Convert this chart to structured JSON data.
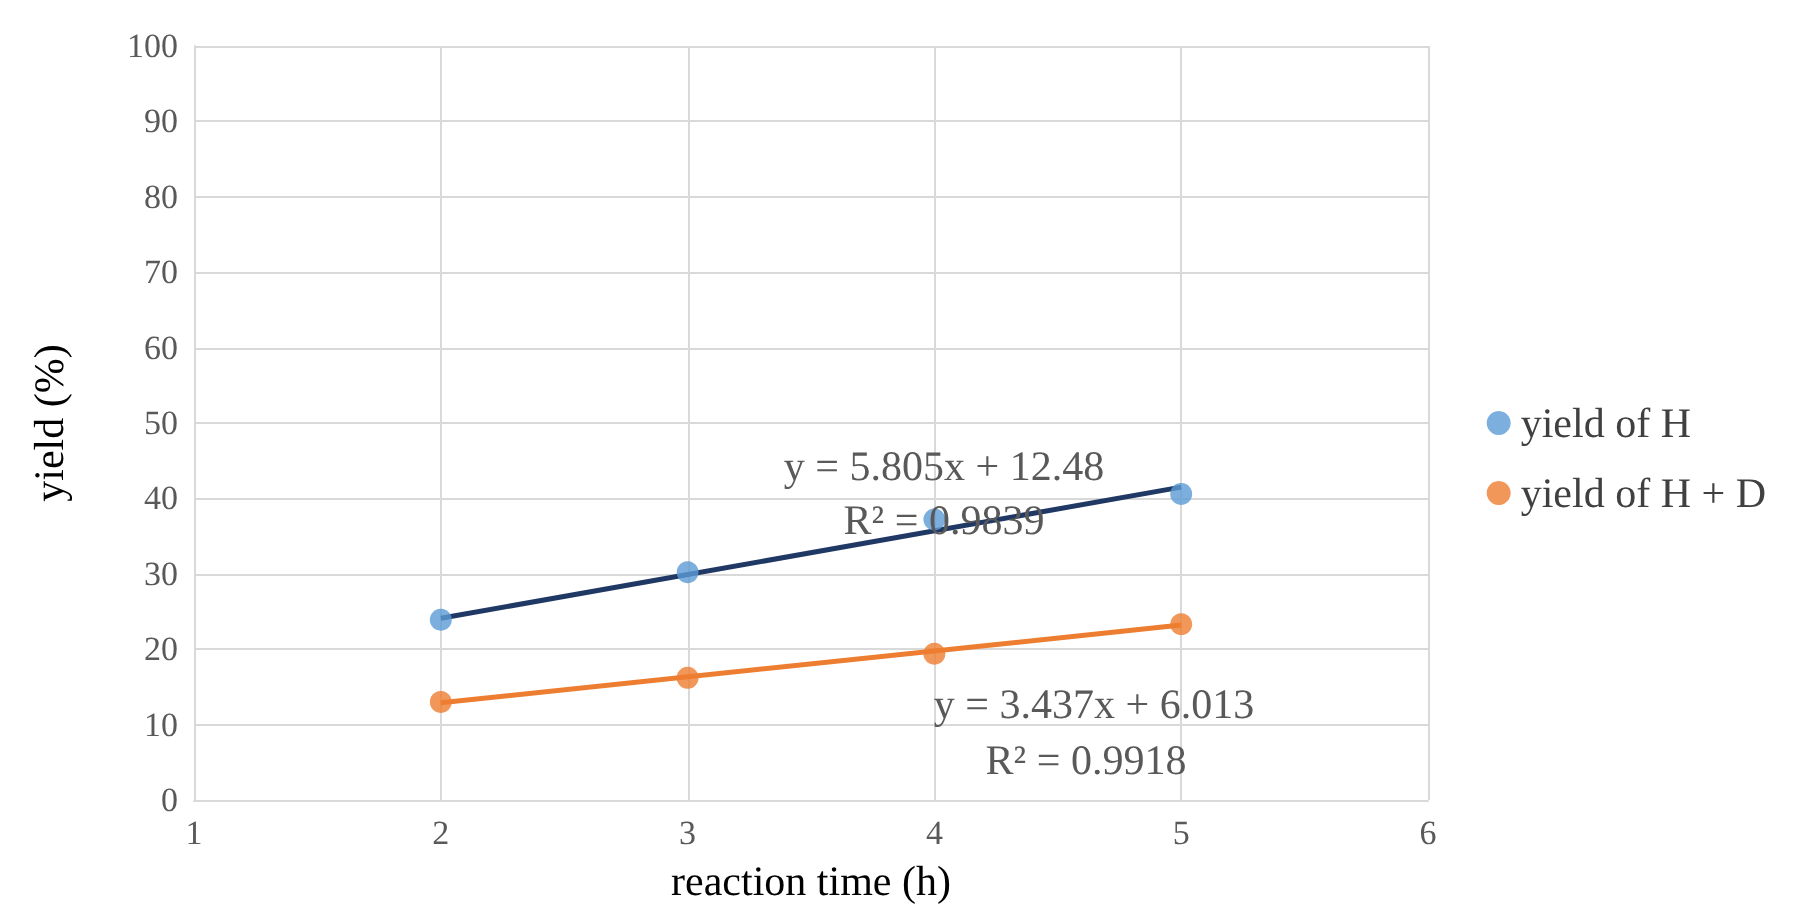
{
  "chart_data": {
    "type": "scatter",
    "xlabel": "reaction time (h)",
    "ylabel": "yield (%)",
    "xlim": [
      1,
      6
    ],
    "xticks": [
      1,
      2,
      3,
      4,
      5,
      6
    ],
    "ylim": [
      0,
      100
    ],
    "yticks": [
      0,
      10,
      20,
      30,
      40,
      50,
      60,
      70,
      80,
      90,
      100
    ],
    "grid": true,
    "legend": "right",
    "marker": "circle",
    "series": [
      {
        "name": "yield of H",
        "color": "#5b9bd5",
        "x": [
          2,
          3,
          4,
          5
        ],
        "values": [
          23.9,
          30.2,
          37.2,
          40.6
        ]
      },
      {
        "name": "yield of H + D",
        "color": "#ed7d31",
        "x": [
          2,
          3,
          4,
          5
        ],
        "values": [
          13.0,
          16.2,
          19.4,
          23.3
        ]
      },
      {
        "type": "line",
        "marker": "none",
        "color": "#1f3864",
        "x": [
          2,
          5
        ],
        "values": [
          24.1,
          41.5
        ]
      },
      {
        "type": "line",
        "marker": "none",
        "color": "#ed7d31",
        "x": [
          2,
          5
        ],
        "values": [
          12.9,
          23.2
        ]
      }
    ],
    "annotations": [
      "y = 5.805x + 12.48",
      "R² = 0.9839",
      "y = 3.437x + 6.013",
      "R² = 0.9918"
    ]
  }
}
